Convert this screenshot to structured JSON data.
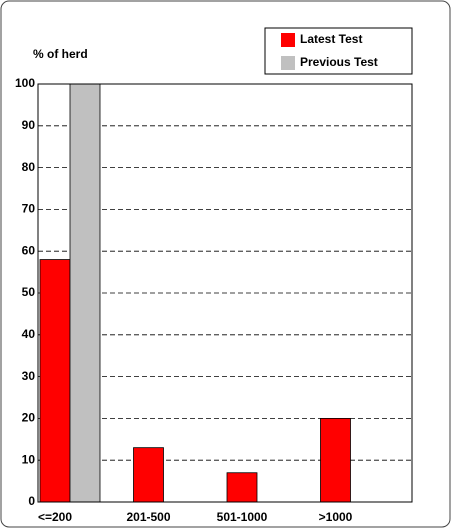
{
  "chart_data": {
    "type": "bar",
    "ylabel": "% of herd",
    "categories": [
      "<=200",
      "201-500",
      "501-1000",
      ">1000"
    ],
    "series": [
      {
        "name": "Latest Test",
        "color": "#ff0000",
        "values": [
          58,
          13,
          7,
          20
        ]
      },
      {
        "name": "Previous Test",
        "color": "#c0c0c0",
        "values": [
          100,
          0,
          0,
          0
        ]
      }
    ],
    "ylim": [
      0,
      100
    ],
    "yticks": [
      0,
      10,
      20,
      30,
      40,
      50,
      60,
      70,
      80,
      90,
      100
    ],
    "grid": true,
    "legend": "top-right"
  }
}
